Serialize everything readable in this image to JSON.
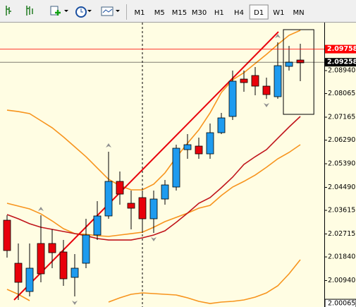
{
  "toolbar": {
    "timeframes": [
      "M1",
      "M5",
      "M15",
      "M30",
      "H1",
      "H4",
      "D1",
      "W1",
      "MN"
    ],
    "active_index": 6
  },
  "chart_data": {
    "type": "candlestick",
    "bull_color": "#1e9bef",
    "bear_color": "#e8000b",
    "background": "#fffde3",
    "open": [
      2.03239,
      2.01599,
      2.00523,
      2.02352,
      2.02352,
      2.02029,
      2.01061,
      2.01599,
      2.02675,
      2.03401,
      2.04718,
      2.03885,
      2.041,
      2.03293,
      2.04046,
      2.04503,
      2.05928,
      2.06063,
      2.05767,
      2.06574,
      2.07192,
      2.08617,
      2.08752,
      2.08348,
      2.07945,
      2.09101,
      2.09343
    ],
    "high": [
      2.03428,
      2.02352,
      2.02352,
      2.03428,
      2.0289,
      2.02486,
      2.01949,
      2.03293,
      2.03965,
      2.05848,
      2.05095,
      2.04369,
      2.04369,
      2.04369,
      2.04772,
      2.06117,
      2.0652,
      2.06385,
      2.06923,
      2.07327,
      2.0894,
      2.0894,
      2.09074,
      2.08671,
      2.10016,
      2.09881,
      2.09962
    ],
    "low": [
      2.01814,
      2.00201,
      2.00335,
      2.00873,
      2.01411,
      2.00739,
      2.00335,
      2.01411,
      2.02486,
      2.03293,
      2.03831,
      2.0289,
      2.02755,
      2.02755,
      2.03831,
      2.04369,
      2.05579,
      2.05579,
      2.05579,
      2.0652,
      2.07058,
      2.08133,
      2.07999,
      2.07864,
      2.07864,
      2.0894,
      2.08537
    ],
    "close": [
      2.02083,
      2.00873,
      2.01411,
      2.01196,
      2.02002,
      2.01007,
      2.01411,
      2.02675,
      2.03401,
      2.04718,
      2.04234,
      2.03696,
      2.03293,
      2.04046,
      2.04584,
      2.05982,
      2.06117,
      2.05767,
      2.06574,
      2.07138,
      2.08537,
      2.08483,
      2.08348,
      2.08026,
      2.09128,
      2.09263,
      2.09236
    ],
    "overlays": [
      {
        "color": "#f7941d",
        "values": [
          2.07434,
          2.0738,
          2.073,
          2.07031,
          2.06762,
          2.06412,
          2.06036,
          2.05659,
          2.05229,
          2.04799,
          2.04557,
          2.04396,
          2.04396,
          2.04611,
          2.05041,
          2.05633,
          2.0617,
          2.06681,
          2.07327,
          2.08106,
          2.0859,
          2.08859,
          2.09209,
          2.09558,
          2.09935,
          2.10284,
          2.10473
        ]
      },
      {
        "color": "#f7941d",
        "values": [
          2.03885,
          2.03777,
          2.0367,
          2.03481,
          2.03212,
          2.02917,
          2.02728,
          2.02702,
          2.02648,
          2.02621,
          2.02675,
          2.02728,
          2.02782,
          2.0297,
          2.03186,
          2.03347,
          2.03508,
          2.03696,
          2.03804,
          2.0418,
          2.04503,
          2.04718,
          2.0496,
          2.05256,
          2.05579,
          2.05821,
          2.06117
        ]
      },
      {
        "color": "#f7941d",
        "values": [
          2.00604,
          2.00416,
          2.00174,
          null,
          null,
          null,
          null,
          null,
          null,
          2.0012,
          2.00281,
          2.00416,
          2.0047,
          2.00443,
          2.00416,
          2.00389,
          2.00281,
          2.00147,
          2.00065,
          2.0012,
          2.00147,
          2.00201,
          2.00308,
          2.0047,
          2.00739,
          2.01196,
          2.01733
        ]
      },
      {
        "color": "#c0141b",
        "values": [
          2.03454,
          2.03293,
          2.03105,
          2.0297,
          2.0289,
          2.02809,
          2.02728,
          2.02648,
          2.0254,
          2.02486,
          2.02486,
          2.02486,
          2.02567,
          2.02675,
          2.02836,
          2.03159,
          2.03508,
          2.03885,
          2.041,
          2.04476,
          2.0488,
          2.05364,
          2.05659,
          2.05928,
          2.06359,
          2.06789,
          2.07192
        ]
      }
    ],
    "trend_line": {
      "color": "#e8000b",
      "from": [
        0.625,
        2.00201
      ],
      "to": [
        24.06,
        2.10419
      ]
    },
    "vline_index": 12,
    "box": {
      "x": [
        24.5,
        27.2
      ],
      "y": [
        2.105,
        2.07273
      ]
    },
    "fractals_up": [
      3,
      9,
      24
    ],
    "fractals_down": [
      6,
      13,
      23
    ],
    "price_lines": [
      {
        "value": 2.09758,
        "color": "#ff0000"
      },
      {
        "value": 2.09258,
        "color": "#000000"
      }
    ],
    "ylim": [
      1.99932,
      2.10769
    ],
    "yticks": [
      {
        "value": 2.0894,
        "label": "2.08940"
      },
      2.08065,
      2.07165,
      {
        "value": 2.0629,
        "label": "2.06290"
      },
      {
        "value": 2.0539,
        "label": "2.05390"
      },
      {
        "value": 2.0449,
        "label": "2.04490"
      },
      2.03615,
      2.02715,
      {
        "value": 2.0184,
        "label": "2.01840"
      },
      {
        "value": 2.0094,
        "label": "2.00940"
      },
      2.00065
    ]
  }
}
